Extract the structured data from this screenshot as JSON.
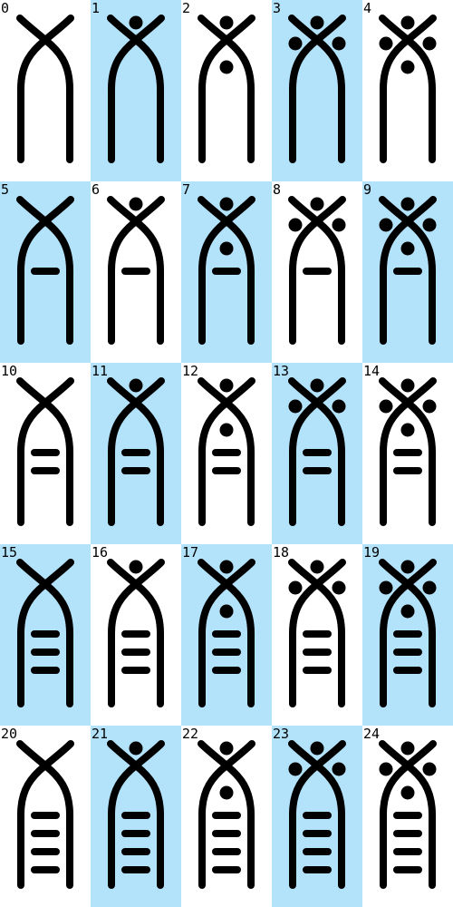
{
  "colors": {
    "highlight": "#b3e3fb",
    "plain": "#ffffff",
    "ink": "#000000"
  },
  "cells": [
    {
      "label": "0",
      "dots": 0,
      "bars": 0,
      "highlighted": false
    },
    {
      "label": "1",
      "dots": 1,
      "bars": 0,
      "highlighted": true
    },
    {
      "label": "2",
      "dots": 2,
      "bars": 0,
      "highlighted": false
    },
    {
      "label": "3",
      "dots": 3,
      "bars": 0,
      "highlighted": true
    },
    {
      "label": "4",
      "dots": 4,
      "bars": 0,
      "highlighted": false
    },
    {
      "label": "5",
      "dots": 0,
      "bars": 1,
      "highlighted": true
    },
    {
      "label": "6",
      "dots": 1,
      "bars": 1,
      "highlighted": false
    },
    {
      "label": "7",
      "dots": 2,
      "bars": 1,
      "highlighted": true
    },
    {
      "label": "8",
      "dots": 3,
      "bars": 1,
      "highlighted": false
    },
    {
      "label": "9",
      "dots": 4,
      "bars": 1,
      "highlighted": true
    },
    {
      "label": "10",
      "dots": 0,
      "bars": 2,
      "highlighted": false
    },
    {
      "label": "11",
      "dots": 1,
      "bars": 2,
      "highlighted": true
    },
    {
      "label": "12",
      "dots": 2,
      "bars": 2,
      "highlighted": false
    },
    {
      "label": "13",
      "dots": 3,
      "bars": 2,
      "highlighted": true
    },
    {
      "label": "14",
      "dots": 4,
      "bars": 2,
      "highlighted": false
    },
    {
      "label": "15",
      "dots": 0,
      "bars": 3,
      "highlighted": true
    },
    {
      "label": "16",
      "dots": 1,
      "bars": 3,
      "highlighted": false
    },
    {
      "label": "17",
      "dots": 2,
      "bars": 3,
      "highlighted": true
    },
    {
      "label": "18",
      "dots": 3,
      "bars": 3,
      "highlighted": false
    },
    {
      "label": "19",
      "dots": 4,
      "bars": 3,
      "highlighted": true
    },
    {
      "label": "20",
      "dots": 0,
      "bars": 4,
      "highlighted": false
    },
    {
      "label": "21",
      "dots": 1,
      "bars": 4,
      "highlighted": true
    },
    {
      "label": "22",
      "dots": 2,
      "bars": 4,
      "highlighted": false
    },
    {
      "label": "23",
      "dots": 3,
      "bars": 4,
      "highlighted": true
    },
    {
      "label": "24",
      "dots": 4,
      "bars": 4,
      "highlighted": false
    }
  ]
}
